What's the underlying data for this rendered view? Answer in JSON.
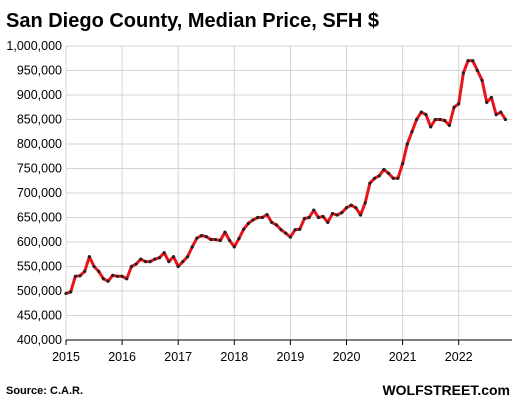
{
  "chart_data": {
    "type": "line",
    "title": "San Diego County, Median Price, SFH $",
    "source": "Source: C.A.R.",
    "brand": "WOLFSTREET.com",
    "ylim": [
      400000,
      1000000
    ],
    "xlim": [
      2015,
      2022.95
    ],
    "y_ticks": [
      1000000,
      950000,
      900000,
      850000,
      800000,
      750000,
      700000,
      650000,
      600000,
      550000,
      500000,
      450000,
      400000
    ],
    "y_tick_labels": [
      "1,000,000",
      "950,000",
      "900,000",
      "850,000",
      "800,000",
      "750,000",
      "700,000",
      "650,000",
      "600,000",
      "550,000",
      "500,000",
      "450,000",
      "400,000"
    ],
    "x_ticks": [
      2015,
      2016,
      2017,
      2018,
      2019,
      2020,
      2021,
      2022
    ],
    "x_tick_labels": [
      "2015",
      "2016",
      "2017",
      "2018",
      "2019",
      "2020",
      "2021",
      "2022"
    ],
    "grid": true,
    "colors": {
      "line": "#e8141b",
      "marker": "#222222",
      "grid": "#d4d4d4",
      "axis": "#000000"
    },
    "series": [
      {
        "values": [
          495000,
          498000,
          530000,
          531000,
          540000,
          570000,
          550000,
          540000,
          525000,
          520000,
          532000,
          530000,
          530000,
          525000,
          550000,
          555000,
          565000,
          560000,
          560000,
          565000,
          568000,
          578000,
          560000,
          570000,
          550000,
          560000,
          570000,
          590000,
          608000,
          613000,
          611000,
          605000,
          605000,
          603000,
          620000,
          603000,
          590000,
          607000,
          626000,
          638000,
          645000,
          650000,
          650000,
          656000,
          640000,
          635000,
          625000,
          618000,
          610000,
          625000,
          626000,
          648000,
          650000,
          665000,
          650000,
          652000,
          640000,
          658000,
          655000,
          660000,
          670000,
          675000,
          670000,
          655000,
          680000,
          720000,
          730000,
          735000,
          748000,
          740000,
          730000,
          730000,
          760000,
          800000,
          825000,
          850000,
          865000,
          860000,
          835000,
          850000,
          850000,
          848000,
          838000,
          875000,
          882000,
          945000,
          970000,
          970000,
          950000,
          930000,
          885000,
          895000,
          860000,
          865000,
          850000
        ]
      }
    ]
  }
}
